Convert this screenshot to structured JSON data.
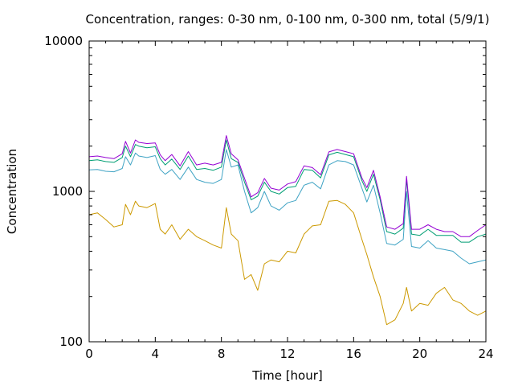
{
  "chart_data": {
    "type": "line",
    "title": "Concentration, ranges: 0-30 nm, 0-100 nm, 0-300 nm, total (5/9/1)",
    "xlabel": "Time [hour]",
    "ylabel": "Concentration",
    "xlim": [
      0,
      24
    ],
    "ylim": [
      100,
      10000
    ],
    "yscale": "log",
    "grid": false,
    "legend": "none",
    "x_ticks": [
      0,
      4,
      8,
      12,
      16,
      20,
      24
    ],
    "x_tick_labels": [
      "0",
      "4",
      "8",
      "12",
      "16",
      "20",
      "24"
    ],
    "y_ticks": [
      100,
      1000,
      10000
    ],
    "y_tick_labels": [
      "100",
      "1000",
      "10000"
    ],
    "x": [
      0,
      0.5,
      1,
      1.5,
      2,
      2.2,
      2.5,
      2.8,
      3,
      3.5,
      4,
      4.3,
      4.6,
      5,
      5.5,
      6,
      6.5,
      7,
      7.5,
      8,
      8.3,
      8.6,
      9,
      9.4,
      9.8,
      10.2,
      10.6,
      11,
      11.5,
      12,
      12.5,
      13,
      13.5,
      14,
      14.5,
      15,
      15.5,
      16,
      16.5,
      16.8,
      17.2,
      17.6,
      18,
      18.5,
      19,
      19.2,
      19.5,
      20,
      20.5,
      21,
      21.5,
      22,
      22.5,
      23,
      23.5,
      24
    ],
    "series": [
      {
        "color": "#cc9900",
        "values": [
          700,
          720,
          650,
          580,
          600,
          820,
          700,
          860,
          800,
          780,
          830,
          560,
          520,
          600,
          480,
          560,
          500,
          470,
          440,
          420,
          780,
          520,
          470,
          260,
          280,
          220,
          330,
          350,
          340,
          400,
          390,
          520,
          590,
          600,
          860,
          870,
          820,
          720,
          480,
          380,
          270,
          200,
          130,
          140,
          180,
          230,
          160,
          180,
          175,
          210,
          230,
          190,
          180,
          160,
          150,
          160
        ]
      },
      {
        "color": "#3fa3c4",
        "values": [
          1390,
          1400,
          1360,
          1350,
          1420,
          1700,
          1500,
          1800,
          1720,
          1680,
          1730,
          1400,
          1300,
          1400,
          1200,
          1450,
          1200,
          1150,
          1130,
          1200,
          1900,
          1450,
          1500,
          1000,
          720,
          780,
          1000,
          800,
          750,
          840,
          870,
          1100,
          1150,
          1040,
          1500,
          1600,
          1580,
          1500,
          1050,
          850,
          1100,
          720,
          450,
          440,
          480,
          1000,
          430,
          420,
          470,
          420,
          410,
          400,
          360,
          330,
          340,
          350
        ]
      },
      {
        "color": "#009e73",
        "values": [
          1600,
          1620,
          1580,
          1560,
          1680,
          2000,
          1700,
          2050,
          2000,
          1950,
          1980,
          1650,
          1500,
          1640,
          1400,
          1720,
          1400,
          1420,
          1380,
          1450,
          2200,
          1650,
          1560,
          1150,
          880,
          930,
          1150,
          1000,
          960,
          1060,
          1080,
          1400,
          1380,
          1230,
          1750,
          1820,
          1760,
          1700,
          1180,
          1000,
          1300,
          880,
          540,
          520,
          570,
          1200,
          520,
          510,
          560,
          510,
          510,
          510,
          460,
          460,
          500,
          520
        ]
      },
      {
        "color": "#9400d3",
        "values": [
          1700,
          1720,
          1680,
          1650,
          1780,
          2150,
          1800,
          2200,
          2120,
          2080,
          2100,
          1750,
          1600,
          1760,
          1480,
          1840,
          1500,
          1540,
          1500,
          1560,
          2350,
          1780,
          1620,
          1220,
          920,
          980,
          1220,
          1050,
          1020,
          1120,
          1160,
          1480,
          1440,
          1290,
          1830,
          1900,
          1840,
          1780,
          1230,
          1060,
          1380,
          920,
          580,
          560,
          610,
          1260,
          560,
          560,
          600,
          560,
          540,
          540,
          500,
          500,
          550,
          600
        ]
      }
    ]
  }
}
